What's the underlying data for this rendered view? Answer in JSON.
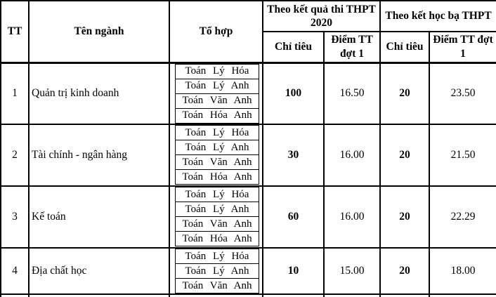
{
  "colors": {
    "border": "#000000",
    "text": "#000000",
    "background": "#ffffff"
  },
  "table": {
    "header": {
      "tt": "TT",
      "ten_nganh": "Tên ngành",
      "to_hop": "Tổ hợp",
      "group_thi": "Theo kết quả thi THPT 2020",
      "group_hocba": "Theo kết học bạ THPT",
      "chi_tieu": "Chỉ tiêu",
      "diem_tt_dot1": "Điểm TT đợt 1"
    },
    "rows": [
      {
        "tt": "1",
        "ten_nganh": "Quản trị kinh doanh",
        "to_hop": [
          "Toán Lý Hóa",
          "Toán Lý Anh",
          "Toán Văn Anh",
          "Toán Hóa Anh"
        ],
        "thi_chi_tieu": "100",
        "thi_diem": "16.50",
        "hocba_chi_tieu": "20",
        "hocba_diem": "23.50"
      },
      {
        "tt": "2",
        "ten_nganh": "Tài chính - ngân hàng",
        "to_hop": [
          "Toán Lý Hóa",
          "Toán Lý Anh",
          "Toán Văn Anh",
          "Toán Hóa Anh"
        ],
        "thi_chi_tieu": "30",
        "thi_diem": "16.00",
        "hocba_chi_tieu": "20",
        "hocba_diem": "21.50"
      },
      {
        "tt": "3",
        "ten_nganh": "Kế toán",
        "to_hop": [
          "Toán Lý Hóa",
          "Toán Lý Anh",
          "Toán Văn Anh",
          "Toán Hóa Anh"
        ],
        "thi_chi_tieu": "60",
        "thi_diem": "16.00",
        "hocba_chi_tieu": "20",
        "hocba_diem": "22.29"
      },
      {
        "tt": "4",
        "ten_nganh": "Địa chất học",
        "to_hop": [
          "Toán Lý Hóa",
          "Toán Lý Anh",
          "Toán Văn Anh"
        ],
        "thi_chi_tieu": "10",
        "thi_diem": "15.00",
        "hocba_chi_tieu": "20",
        "hocba_diem": "18.00"
      }
    ]
  }
}
